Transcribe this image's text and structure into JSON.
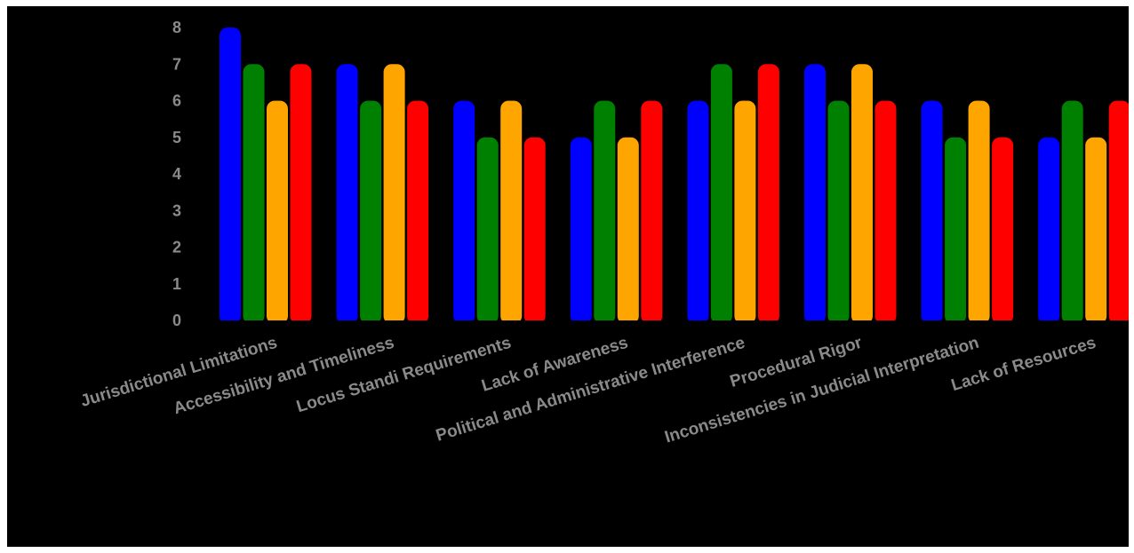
{
  "chart_data": {
    "type": "bar",
    "title": "",
    "xlabel": "",
    "ylabel": "",
    "ylim": [
      0,
      8
    ],
    "yticks": [
      "0",
      "1",
      "2",
      "3",
      "4",
      "5",
      "6",
      "7",
      "8"
    ],
    "grid": false,
    "legend": "none",
    "background": "#000000",
    "categories": [
      "Jurisdictional Limitations",
      "Accessibility and Timeliness",
      "Locus Standi Requirements",
      "Lack of Awareness",
      "Political and Administrative Interference",
      "Procedural Rigor",
      "Inconsistencies in Judicial Interpretation",
      "Lack of Resources"
    ],
    "series": [
      {
        "color": "#0000ff",
        "values": [
          8,
          7,
          6,
          5,
          6,
          7,
          6,
          5
        ]
      },
      {
        "color": "#008000",
        "values": [
          7,
          6,
          5,
          6,
          7,
          6,
          5,
          6
        ]
      },
      {
        "color": "#ffa500",
        "values": [
          6,
          7,
          6,
          5,
          6,
          7,
          6,
          5
        ]
      },
      {
        "color": "#ff0000",
        "values": [
          7,
          6,
          5,
          6,
          7,
          6,
          5,
          6
        ]
      }
    ]
  }
}
